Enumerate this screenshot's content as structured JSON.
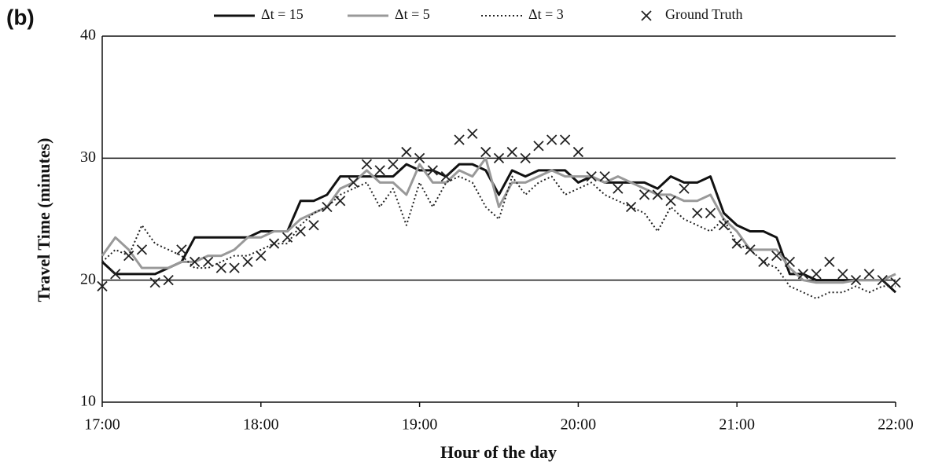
{
  "chart_data": {
    "type": "line",
    "panel_label": "(b)",
    "x_label": "Hour of the day",
    "y_label": "Travel Time (minutes)",
    "x": [
      17,
      17.083,
      17.167,
      17.25,
      17.333,
      17.417,
      17.5,
      17.583,
      17.667,
      17.75,
      17.833,
      17.917,
      18,
      18.083,
      18.167,
      18.25,
      18.333,
      18.417,
      18.5,
      18.583,
      18.667,
      18.75,
      18.833,
      18.917,
      19,
      19.083,
      19.167,
      19.25,
      19.333,
      19.417,
      19.5,
      19.583,
      19.667,
      19.75,
      19.833,
      19.917,
      20,
      20.083,
      20.167,
      20.25,
      20.333,
      20.417,
      20.5,
      20.583,
      20.667,
      20.75,
      20.833,
      20.917,
      21,
      21.083,
      21.167,
      21.25,
      21.333,
      21.417,
      21.5,
      21.583,
      21.667,
      21.75,
      21.833,
      21.917,
      22
    ],
    "series": [
      {
        "name": "Δt = 15",
        "color": "#111111",
        "width": 3,
        "dash": "solid",
        "mode": "line",
        "values": [
          21.5,
          20.5,
          20.5,
          20.5,
          20.5,
          21,
          21.5,
          23.5,
          23.5,
          23.5,
          23.5,
          23.5,
          24,
          24,
          24,
          26.5,
          26.5,
          27,
          28.5,
          28.5,
          28.5,
          28.5,
          28.5,
          29.5,
          29,
          29,
          28.5,
          29.5,
          29.5,
          29,
          27,
          29,
          28.5,
          29,
          29,
          29,
          28,
          28.5,
          28,
          28,
          28,
          28,
          27.5,
          28.5,
          28,
          28,
          28.5,
          25.5,
          24.5,
          24,
          24,
          23.5,
          20.5,
          20.5,
          20,
          20,
          20,
          20,
          20,
          20,
          19
        ]
      },
      {
        "name": "Δt = 5",
        "color": "#999999",
        "width": 3,
        "dash": "solid",
        "mode": "line",
        "values": [
          22,
          23.5,
          22.5,
          21,
          21,
          21,
          21.5,
          21.5,
          22,
          22,
          22.5,
          23.5,
          23.5,
          24,
          24,
          25,
          25.5,
          26,
          27.5,
          28,
          29,
          28,
          28,
          27,
          29.5,
          28,
          28,
          29,
          28.5,
          30,
          26,
          28,
          28,
          28.5,
          29,
          28.5,
          28.5,
          28.5,
          28,
          28.5,
          28,
          27.5,
          27,
          27,
          26.5,
          26.5,
          27,
          25,
          24,
          22.5,
          22.5,
          22.5,
          21,
          20,
          19.8,
          19.8,
          19.8,
          20,
          20,
          20,
          20.5
        ]
      },
      {
        "name": "Δt = 3",
        "color": "#222222",
        "width": 2,
        "dash": "dotted",
        "mode": "line",
        "values": [
          21.5,
          22.5,
          22,
          24.5,
          23,
          22.5,
          22,
          21,
          21,
          21.5,
          22,
          22,
          22.5,
          23,
          23,
          24.5,
          25.5,
          26,
          27,
          27.5,
          28,
          26,
          27.5,
          24.5,
          28,
          26,
          28,
          28.5,
          28,
          26,
          25,
          28.5,
          27,
          28,
          28.5,
          27,
          27.5,
          28,
          27,
          26.5,
          26,
          25.5,
          24,
          26,
          25,
          24.5,
          24,
          25,
          23,
          22.5,
          21.5,
          21,
          19.5,
          19,
          18.5,
          19,
          19,
          19.5,
          19,
          19.5,
          19.5
        ]
      },
      {
        "name": "Ground Truth",
        "color": "#222222",
        "mode": "markers",
        "values": [
          19.5,
          20.5,
          22,
          22.5,
          19.8,
          20,
          22.5,
          21.5,
          21.5,
          21,
          21,
          21.5,
          22,
          23,
          23.5,
          24,
          24.5,
          26,
          26.5,
          28,
          29.5,
          29,
          29.5,
          30.5,
          30,
          29,
          28.5,
          31.5,
          32,
          30.5,
          30,
          30.5,
          30,
          31,
          31.5,
          31.5,
          30.5,
          28.5,
          28.5,
          27.5,
          26,
          27,
          27,
          26.5,
          27.5,
          25.5,
          25.5,
          24.5,
          23,
          22.5,
          21.5,
          22,
          21.5,
          20.5,
          20.5,
          21.5,
          20.5,
          20,
          20.5,
          20,
          19.8
        ]
      }
    ],
    "xlim": [
      17,
      22
    ],
    "xticks": [
      {
        "value": 17,
        "label": "17:00"
      },
      {
        "value": 18,
        "label": "18:00"
      },
      {
        "value": 19,
        "label": "19:00"
      },
      {
        "value": 20,
        "label": "20:00"
      },
      {
        "value": 21,
        "label": "21:00"
      },
      {
        "value": 22,
        "label": "22:00"
      }
    ],
    "ylim": [
      10,
      40
    ],
    "yticks": [
      10,
      20,
      30,
      40
    ],
    "grid": true,
    "legend": "top"
  }
}
